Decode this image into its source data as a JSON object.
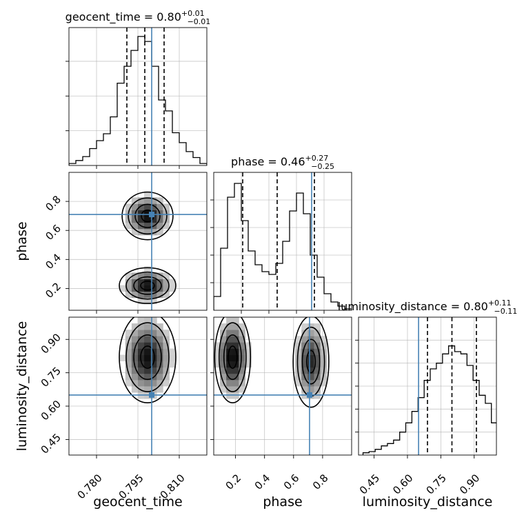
{
  "chart_data": {
    "type": "corner",
    "parameters": [
      "geocent_time",
      "phase",
      "luminosity_distance"
    ],
    "truth_color": "#4682b4",
    "truths": {
      "geocent_time": 0.8,
      "phase": 0.71,
      "luminosity_distance": 0.65
    },
    "diagonal": [
      {
        "parameter": "geocent_time",
        "title_prefix": "geocent_time = 0.80",
        "title_plus": "+0.01",
        "title_minus": "−0.01",
        "type": "step-histogram",
        "bin_edges": [
          0.77,
          0.7725,
          0.775,
          0.7775,
          0.78,
          0.7825,
          0.785,
          0.7875,
          0.79,
          0.7925,
          0.795,
          0.7975,
          0.8,
          0.8025,
          0.805,
          0.8075,
          0.81,
          0.8125,
          0.815,
          0.8175,
          0.82
        ],
        "counts": [
          0.02,
          0.05,
          0.09,
          0.17,
          0.25,
          0.32,
          0.49,
          0.83,
          1.0,
          1.16,
          1.3,
          1.25,
          1.0,
          0.66,
          0.55,
          0.33,
          0.23,
          0.14,
          0.08,
          0.02
        ],
        "quantiles": [
          0.791,
          0.7975,
          0.8045
        ],
        "xlim": [
          0.77,
          0.82
        ],
        "ylim": [
          0,
          1.39
        ],
        "ytick_values": [
          0.35,
          0.7,
          1.05
        ]
      },
      {
        "parameter": "phase",
        "title_prefix": "phase = 0.46",
        "title_plus": "+0.27",
        "title_minus": "−0.25",
        "type": "step-histogram",
        "bin_edges": [
          0.0,
          0.05,
          0.1,
          0.15,
          0.2,
          0.25,
          0.3,
          0.35,
          0.4,
          0.45,
          0.5,
          0.55,
          0.6,
          0.65,
          0.7,
          0.75,
          0.8,
          0.85,
          0.9,
          0.95,
          1.0
        ],
        "counts": [
          0.1,
          0.45,
          0.82,
          0.92,
          0.65,
          0.43,
          0.33,
          0.28,
          0.26,
          0.34,
          0.5,
          0.72,
          0.85,
          0.7,
          0.4,
          0.24,
          0.12,
          0.06,
          0.03,
          0.01
        ],
        "quantiles": [
          0.21,
          0.46,
          0.73
        ],
        "xlim": [
          0.0,
          1.0
        ],
        "ylim": [
          0,
          1.0
        ],
        "ytick_values": [
          0.2,
          0.4,
          0.6,
          0.8
        ]
      },
      {
        "parameter": "luminosity_distance",
        "title_prefix": "luminosity_distance = 0.80",
        "title_plus": "+0.11",
        "title_minus": "−0.11",
        "type": "step-histogram",
        "bin_edges": [
          0.4,
          0.4275,
          0.455,
          0.4825,
          0.51,
          0.5375,
          0.565,
          0.5925,
          0.62,
          0.6475,
          0.675,
          0.7025,
          0.73,
          0.7575,
          0.785,
          0.8125,
          0.84,
          0.8675,
          0.895,
          0.9225,
          0.95,
          0.9775,
          1.005
        ],
        "counts": [
          0.02,
          0.03,
          0.05,
          0.08,
          0.1,
          0.13,
          0.2,
          0.28,
          0.38,
          0.5,
          0.65,
          0.75,
          0.8,
          0.88,
          0.95,
          0.9,
          0.88,
          0.78,
          0.65,
          0.52,
          0.45,
          0.28
        ],
        "quantiles": [
          0.69,
          0.8,
          0.91
        ],
        "xlim": [
          0.38,
          1.0
        ],
        "ylim": [
          0,
          1.2
        ],
        "ytick_values": [
          0.2,
          0.4,
          0.6,
          0.8,
          1.0
        ]
      }
    ],
    "pairs": [
      {
        "x": "geocent_time",
        "y": "phase",
        "centers": [
          [
            0.7985,
            0.7,
            0.0045,
            0.08,
            1.0
          ],
          [
            0.7985,
            0.22,
            0.005,
            0.06,
            1.0
          ]
        ]
      },
      {
        "x": "geocent_time",
        "y": "luminosity_distance",
        "centers": [
          [
            0.7985,
            0.82,
            0.005,
            0.1,
            1.0
          ]
        ]
      },
      {
        "x": "phase",
        "y": "luminosity_distance",
        "centers": [
          [
            0.18,
            0.82,
            0.06,
            0.1,
            1.0
          ],
          [
            0.72,
            0.8,
            0.06,
            0.1,
            0.85
          ]
        ]
      }
    ],
    "axes": {
      "geocent_time": {
        "xlabel": "geocent_time",
        "ticks": [
          0.78,
          0.795,
          0.81
        ],
        "tick_labels": [
          "0.780",
          "0.795",
          "0.810"
        ],
        "lim": [
          0.77,
          0.82
        ]
      },
      "phase": {
        "xlabel": "phase",
        "ylabel": "phase",
        "ticks": [
          0.2,
          0.4,
          0.6,
          0.8
        ],
        "tick_labels": [
          "0.2",
          "0.4",
          "0.6",
          "0.8"
        ],
        "lim": [
          0.05,
          1.0
        ]
      },
      "luminosity_distance": {
        "xlabel": "luminosity_distance",
        "ylabel": "luminosity_distance",
        "ticks": [
          0.45,
          0.6,
          0.75,
          0.9
        ],
        "tick_labels": [
          "0.45",
          "0.60",
          "0.75",
          "0.90"
        ],
        "lim": [
          0.38,
          1.0
        ]
      }
    },
    "grid": true
  }
}
